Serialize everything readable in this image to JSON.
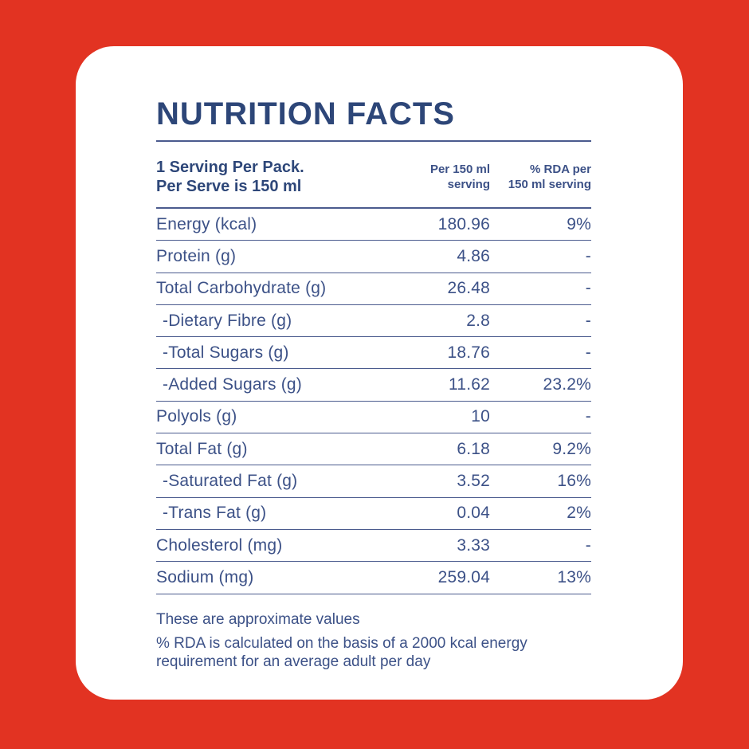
{
  "colors": {
    "background": "#e23322",
    "card": "#ffffff",
    "title_text": "#2d4678",
    "body_text": "#3c5187",
    "line": "#4b5b8e"
  },
  "title": "NUTRITION FACTS",
  "header": {
    "serving_line1": "1 Serving Per Pack.",
    "serving_line2": "Per Serve is 150 ml",
    "col_per_serving_line1": "Per 150 ml",
    "col_per_serving_line2": "serving",
    "col_rda_line1": "% RDA per",
    "col_rda_line2": "150 ml serving"
  },
  "table": {
    "rows": [
      {
        "label": "Energy (kcal)",
        "value": "180.96",
        "rda": "9%"
      },
      {
        "label": "Protein (g)",
        "value": "4.86",
        "rda": "-"
      },
      {
        "label": "Total Carbohydrate (g)",
        "value": "26.48",
        "rda": "-"
      },
      {
        "label": "-Dietary Fibre (g)",
        "value": "2.8",
        "rda": "-"
      },
      {
        "label": "-Total Sugars (g)",
        "value": "18.76",
        "rda": "-"
      },
      {
        "label": "-Added Sugars (g)",
        "value": "11.62",
        "rda": "23.2%"
      },
      {
        "label": "Polyols (g)",
        "value": "10",
        "rda": "-"
      },
      {
        "label": "Total Fat (g)",
        "value": "6.18",
        "rda": "9.2%"
      },
      {
        "label": "-Saturated Fat (g)",
        "value": "3.52",
        "rda": "16%"
      },
      {
        "label": "-Trans Fat (g)",
        "value": "0.04",
        "rda": "2%"
      },
      {
        "label": "Cholesterol (mg)",
        "value": "3.33",
        "rda": "-"
      },
      {
        "label": "Sodium (mg)",
        "value": "259.04",
        "rda": "13%"
      }
    ]
  },
  "footnotes": {
    "approx": "These are approximate values",
    "rda_note": "% RDA is calculated on the basis of a 2000 kcal energy requirement for an average adult per day"
  }
}
